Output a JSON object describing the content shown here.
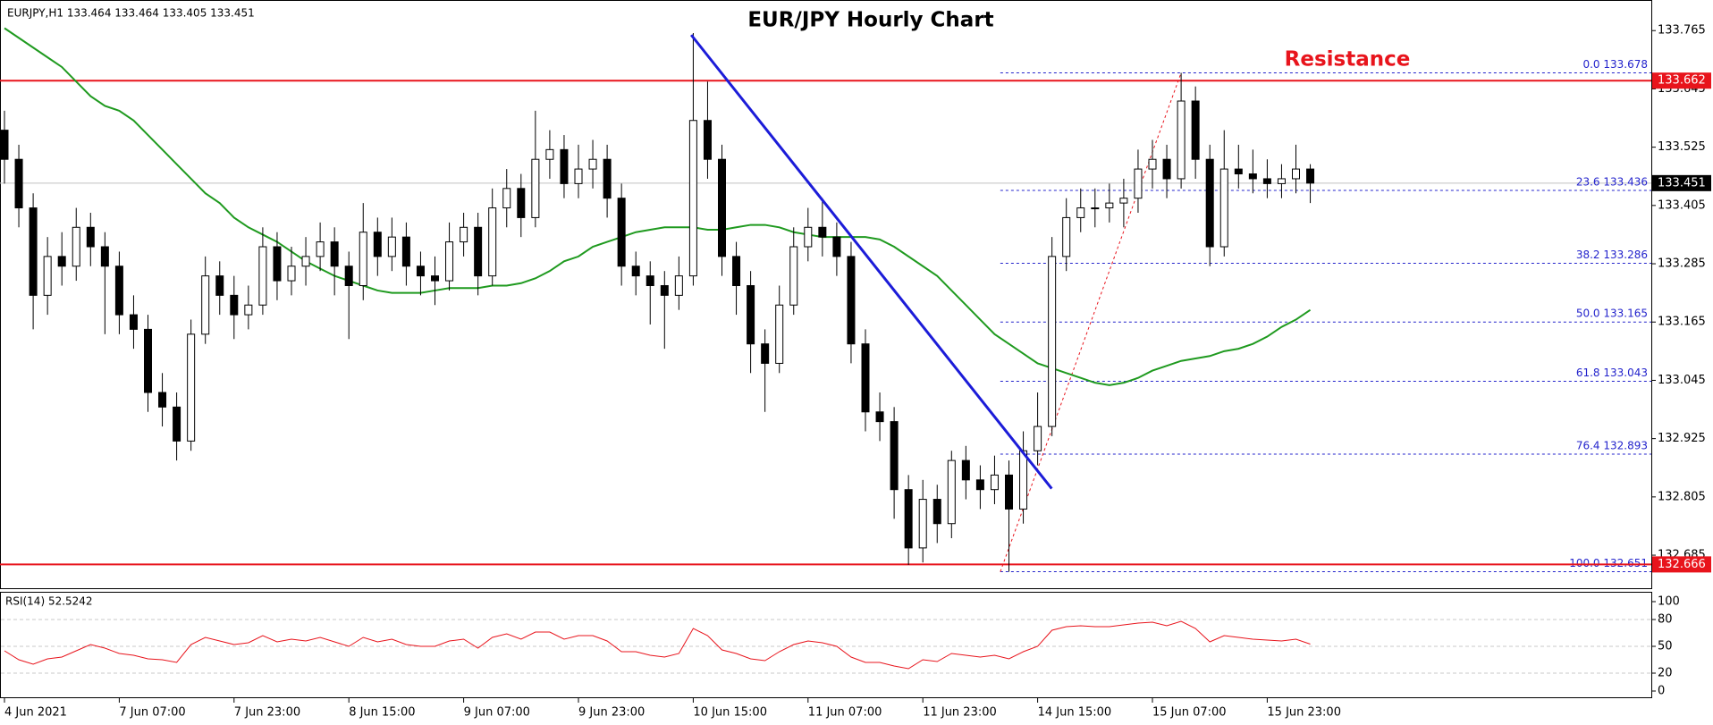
{
  "chart_data": [
    {
      "type": "candlestick",
      "symbol_info": "EURJPY,H1  133.464 133.464 133.405 133.451",
      "title": "EUR/JPY Hourly Chart",
      "categories": [
        "4 Jun 2021",
        null,
        null,
        null,
        null,
        null,
        null,
        null,
        "7 Jun 07:00",
        null,
        null,
        null,
        null,
        null,
        null,
        null,
        "7 Jun 23:00",
        null,
        null,
        null,
        null,
        null,
        null,
        null,
        "8 Jun 15:00",
        null,
        null,
        null,
        null,
        null,
        null,
        null,
        "9 Jun 07:00",
        null,
        null,
        null,
        null,
        null,
        null,
        null,
        "9 Jun 23:00",
        null,
        null,
        null,
        null,
        null,
        null,
        null,
        "10 Jun 15:00",
        null,
        null,
        null,
        null,
        null,
        null,
        null,
        "11 Jun 07:00",
        null,
        null,
        null,
        null,
        null,
        null,
        null,
        "11 Jun 23:00",
        null,
        null,
        null,
        null,
        null,
        null,
        null,
        "14 Jun 15:00",
        null,
        null,
        null,
        null,
        null,
        null,
        null,
        "15 Jun 07:00",
        null,
        null,
        null,
        null,
        null,
        null,
        null,
        "15 Jun 23:00",
        null,
        null,
        null
      ],
      "open": [
        133.56,
        133.5,
        133.4,
        133.22,
        133.3,
        133.28,
        133.36,
        133.32,
        133.28,
        133.18,
        133.15,
        133.02,
        132.99,
        132.92,
        133.14,
        133.26,
        133.22,
        133.18,
        133.2,
        133.32,
        133.25,
        133.28,
        133.3,
        133.33,
        133.28,
        133.24,
        133.35,
        133.3,
        133.34,
        133.28,
        133.26,
        133.25,
        133.33,
        133.36,
        133.26,
        133.4,
        133.44,
        133.38,
        133.5,
        133.52,
        133.45,
        133.48,
        133.5,
        133.42,
        133.28,
        133.26,
        133.24,
        133.22,
        133.26,
        133.58,
        133.5,
        133.3,
        133.24,
        133.12,
        133.08,
        133.2,
        133.32,
        133.36,
        133.34,
        133.3,
        133.12,
        132.98,
        132.96,
        132.82,
        132.7,
        132.8,
        132.75,
        132.88,
        132.84,
        132.82,
        132.85,
        132.78,
        132.9,
        132.95,
        133.3,
        133.38,
        133.4,
        133.4,
        133.41,
        133.42,
        133.48,
        133.5,
        133.46,
        133.62,
        133.5,
        133.32,
        133.48,
        133.47,
        133.46,
        133.45,
        133.46,
        133.48
      ],
      "high": [
        133.6,
        133.53,
        133.43,
        133.34,
        133.35,
        133.4,
        133.39,
        133.35,
        133.31,
        133.22,
        133.18,
        133.06,
        133.02,
        133.17,
        133.3,
        133.29,
        133.26,
        133.24,
        133.36,
        133.35,
        133.32,
        133.34,
        133.37,
        133.36,
        133.31,
        133.41,
        133.38,
        133.38,
        133.37,
        133.31,
        133.3,
        133.37,
        133.39,
        133.39,
        133.44,
        133.48,
        133.47,
        133.6,
        133.56,
        133.55,
        133.53,
        133.54,
        133.53,
        133.45,
        133.31,
        133.29,
        133.27,
        133.3,
        133.76,
        133.66,
        133.53,
        133.33,
        133.27,
        133.15,
        133.24,
        133.36,
        133.4,
        133.42,
        133.37,
        133.33,
        133.15,
        133.02,
        132.99,
        132.85,
        132.84,
        132.83,
        132.9,
        132.91,
        132.87,
        132.89,
        132.88,
        132.94,
        133.02,
        133.34,
        133.42,
        133.44,
        133.44,
        133.45,
        133.46,
        133.52,
        133.54,
        133.53,
        133.678,
        133.65,
        133.53,
        133.56,
        133.53,
        133.52,
        133.5,
        133.49,
        133.53,
        133.49
      ],
      "low": [
        133.45,
        133.36,
        133.15,
        133.18,
        133.24,
        133.25,
        133.28,
        133.14,
        133.14,
        133.11,
        132.98,
        132.95,
        132.88,
        132.9,
        133.12,
        133.18,
        133.13,
        133.15,
        133.18,
        133.21,
        133.22,
        133.24,
        133.27,
        133.22,
        133.13,
        133.21,
        133.26,
        133.27,
        133.24,
        133.22,
        133.2,
        133.23,
        133.3,
        133.22,
        133.24,
        133.36,
        133.34,
        133.36,
        133.46,
        133.42,
        133.42,
        133.44,
        133.38,
        133.24,
        133.22,
        133.16,
        133.11,
        133.19,
        133.24,
        133.46,
        133.26,
        133.18,
        133.06,
        132.98,
        133.06,
        133.18,
        133.29,
        133.3,
        133.26,
        133.08,
        132.94,
        132.92,
        132.76,
        132.665,
        132.67,
        132.71,
        132.72,
        132.8,
        132.78,
        132.79,
        132.651,
        132.75,
        132.87,
        132.93,
        133.27,
        133.35,
        133.36,
        133.37,
        133.36,
        133.39,
        133.44,
        133.42,
        133.44,
        133.46,
        133.28,
        133.3,
        133.44,
        133.43,
        133.42,
        133.42,
        133.43,
        133.41
      ],
      "close": [
        133.5,
        133.4,
        133.22,
        133.3,
        133.28,
        133.36,
        133.32,
        133.28,
        133.18,
        133.15,
        133.02,
        132.99,
        132.92,
        133.14,
        133.26,
        133.22,
        133.18,
        133.2,
        133.32,
        133.25,
        133.28,
        133.3,
        133.33,
        133.28,
        133.24,
        133.35,
        133.3,
        133.34,
        133.28,
        133.26,
        133.25,
        133.33,
        133.36,
        133.26,
        133.4,
        133.44,
        133.38,
        133.5,
        133.52,
        133.45,
        133.48,
        133.5,
        133.42,
        133.28,
        133.26,
        133.24,
        133.22,
        133.26,
        133.58,
        133.5,
        133.3,
        133.24,
        133.12,
        133.08,
        133.2,
        133.32,
        133.36,
        133.34,
        133.3,
        133.12,
        132.98,
        132.96,
        132.82,
        132.7,
        132.8,
        132.75,
        132.88,
        132.84,
        132.82,
        132.85,
        132.78,
        132.9,
        132.95,
        133.3,
        133.38,
        133.4,
        133.4,
        133.41,
        133.42,
        133.48,
        133.5,
        133.46,
        133.62,
        133.5,
        133.32,
        133.48,
        133.47,
        133.46,
        133.45,
        133.46,
        133.48,
        133.451
      ],
      "up_color": "#ffffff",
      "down_color": "#000000",
      "ma": {
        "color": "#1f9a1f",
        "values": [
          133.77,
          133.75,
          133.73,
          133.71,
          133.69,
          133.66,
          133.63,
          133.61,
          133.6,
          133.58,
          133.55,
          133.52,
          133.49,
          133.46,
          133.43,
          133.41,
          133.38,
          133.36,
          133.345,
          133.33,
          133.31,
          133.29,
          133.275,
          133.26,
          133.25,
          133.24,
          133.23,
          133.225,
          133.225,
          133.225,
          133.23,
          133.235,
          133.235,
          133.235,
          133.24,
          133.24,
          133.245,
          133.255,
          133.27,
          133.29,
          133.3,
          133.32,
          133.33,
          133.34,
          133.35,
          133.355,
          133.36,
          133.36,
          133.36,
          133.355,
          133.355,
          133.36,
          133.365,
          133.365,
          133.36,
          133.35,
          133.345,
          133.34,
          133.34,
          133.34,
          133.34,
          133.335,
          133.32,
          133.3,
          133.28,
          133.26,
          133.23,
          133.2,
          133.17,
          133.14,
          133.12,
          133.1,
          133.08,
          133.07,
          133.06,
          133.05,
          133.04,
          133.035,
          133.04,
          133.05,
          133.065,
          133.075,
          133.085,
          133.09,
          133.095,
          133.105,
          133.11,
          133.12,
          133.135,
          133.155,
          133.17,
          133.19
        ]
      },
      "ylim": [
        132.617,
        133.828
      ],
      "yticks": [
        132.685,
        132.805,
        132.925,
        133.045,
        133.165,
        133.285,
        133.405,
        133.525,
        133.645,
        133.765
      ],
      "hlines": {
        "color": "#e8141c",
        "values": [
          133.662,
          132.666
        ]
      },
      "last_price": 133.451,
      "annotation": "Resistance",
      "trendline": {
        "color": "#1c1cd8",
        "x": [
          47.86,
          72.98
        ],
        "y": [
          133.756,
          132.822
        ]
      },
      "fibonacci": {
        "color": "#2424cc",
        "start": 69.4,
        "end": 82,
        "levels": [
          {
            "value": 133.678,
            "label": "0.0 133.678"
          },
          {
            "value": 133.436,
            "label": "23.6 133.436"
          },
          {
            "value": 133.286,
            "label": "38.2 133.286"
          },
          {
            "value": 133.165,
            "label": "50.0 133.165"
          },
          {
            "value": 133.043,
            "label": "61.8 133.043"
          },
          {
            "value": 132.893,
            "label": "76.4 132.893"
          },
          {
            "value": 132.651,
            "label": "100.0 132.651"
          }
        ]
      }
    },
    {
      "type": "line",
      "title": "RSI(14) 52.5242",
      "color": "#e8141c",
      "values": [
        45,
        35,
        30,
        36,
        38,
        45,
        52,
        48,
        42,
        40,
        36,
        35,
        32,
        52,
        60,
        56,
        52,
        54,
        62,
        55,
        58,
        56,
        60,
        55,
        50,
        60,
        55,
        58,
        52,
        50,
        50,
        56,
        58,
        48,
        60,
        64,
        58,
        66,
        66,
        58,
        62,
        62,
        56,
        44,
        44,
        40,
        38,
        42,
        70,
        62,
        46,
        42,
        36,
        34,
        44,
        52,
        56,
        54,
        50,
        38,
        32,
        32,
        28,
        25,
        35,
        33,
        42,
        40,
        38,
        40,
        36,
        44,
        50,
        68,
        72,
        73,
        72,
        72,
        74,
        76,
        77,
        73,
        78,
        70,
        55,
        62,
        60,
        58,
        57,
        56,
        58,
        52.5242
      ],
      "ylim": [
        -7,
        110
      ],
      "yticks": [
        0,
        20,
        50,
        80,
        100
      ],
      "levels": [
        20,
        50,
        80
      ]
    }
  ]
}
